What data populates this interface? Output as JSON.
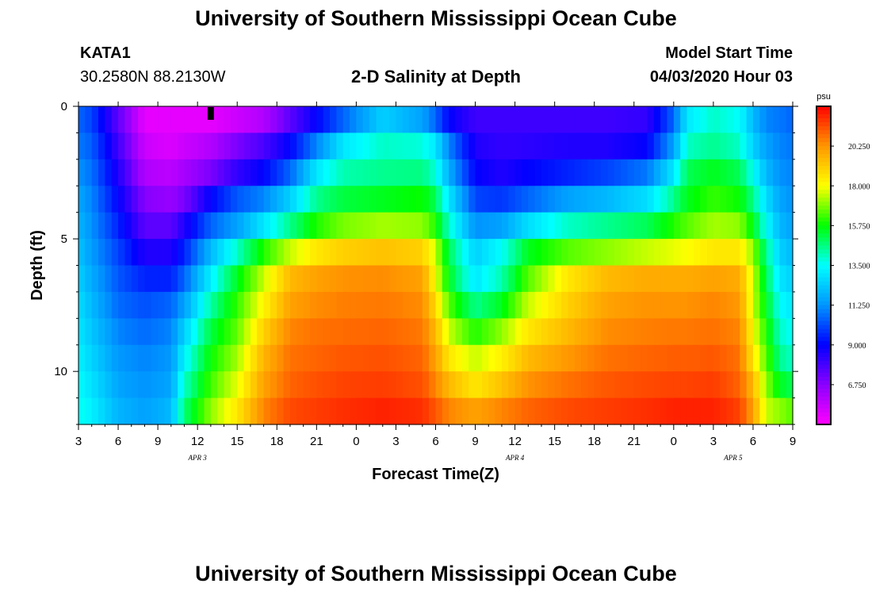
{
  "header": {
    "title": "University of Southern Mississippi Ocean Cube",
    "station_id": "KATA1",
    "coords": "30.2580N 88.2130W",
    "subtitle": "2-D Salinity at Depth",
    "start_label": "Model Start Time",
    "start_value": "04/03/2020 Hour 03"
  },
  "footer": {
    "title": "University of Southern Mississippi Ocean Cube"
  },
  "colors": {
    "scale": [
      "#ff00ff",
      "#8a00ff",
      "#0000ff",
      "#0096ff",
      "#00ffff",
      "#00ff00",
      "#ffff00",
      "#ff9600",
      "#ff0000"
    ],
    "marker": "#000000"
  },
  "chart_data": {
    "type": "heatmap",
    "title": "2-D Salinity at Depth",
    "xlabel": "Forecast Time(Z)",
    "ylabel": "Depth (ft)",
    "xlim": [
      3,
      57
    ],
    "ylim": [
      0,
      12
    ],
    "y_inverted": true,
    "x_tick_labels": [
      "3",
      "6",
      "9",
      "12",
      "15",
      "18",
      "21",
      "0",
      "3",
      "6",
      "9",
      "12",
      "15",
      "18",
      "21",
      "0",
      "3",
      "6",
      "9"
    ],
    "x_tick_hours": [
      3,
      6,
      9,
      12,
      15,
      18,
      21,
      24,
      27,
      30,
      33,
      36,
      39,
      42,
      45,
      48,
      51,
      54,
      57
    ],
    "date_labels": [
      {
        "text": "APR 3",
        "hour": 12
      },
      {
        "text": "APR 4",
        "hour": 36
      },
      {
        "text": "APR 5",
        "hour": 52.5
      }
    ],
    "y_tick_labels": [
      "0",
      "5",
      "10"
    ],
    "y_tick_values": [
      0,
      5,
      10
    ],
    "colorbar": {
      "unit": "psu",
      "min": 4.5,
      "max": 22.5,
      "ticks": [
        "20.250",
        "18.000",
        "15.750",
        "13.500",
        "11.250",
        "9.000",
        "6.750"
      ],
      "tick_values": [
        20.25,
        18.0,
        15.75,
        13.5,
        11.25,
        9.0,
        6.75
      ]
    },
    "depth_levels_ft": [
      0.5,
      1.5,
      2.5,
      3.5,
      4.5,
      5.5,
      6.5,
      7.5,
      8.5,
      9.5,
      10.5,
      11.5
    ],
    "profiles": [
      {
        "hour": 3,
        "values": [
          10.5,
          10.8,
          11.2,
          11.6,
          11.9,
          12.2,
          12.5,
          12.8,
          13.0,
          13.2,
          13.4,
          13.7
        ]
      },
      {
        "hour": 4,
        "values": [
          10.0,
          10.4,
          10.7,
          11.0,
          11.2,
          11.4,
          11.7,
          12.0,
          12.3,
          12.6,
          12.9,
          13.2
        ]
      },
      {
        "hour": 6,
        "values": [
          7.5,
          8.0,
          8.5,
          9.0,
          9.5,
          10.0,
          10.3,
          10.6,
          11.0,
          11.3,
          11.6,
          11.9
        ]
      },
      {
        "hour": 8,
        "values": [
          5.0,
          5.5,
          6.0,
          6.8,
          7.5,
          8.5,
          9.5,
          10.2,
          10.6,
          11.0,
          11.2,
          11.5
        ]
      },
      {
        "hour": 10,
        "values": [
          5.0,
          5.2,
          5.8,
          6.5,
          7.5,
          8.5,
          9.5,
          10.5,
          11.0,
          11.3,
          11.6,
          12.0
        ]
      },
      {
        "hour": 11,
        "values": [
          5.0,
          5.5,
          6.2,
          7.0,
          8.5,
          9.5,
          10.5,
          11.5,
          12.5,
          13.3,
          14.0,
          14.7
        ]
      },
      {
        "hour": 13,
        "values": [
          5.0,
          6.0,
          7.0,
          9.0,
          10.5,
          12.0,
          13.2,
          14.3,
          15.2,
          15.8,
          16.3,
          17.0
        ]
      },
      {
        "hour": 15,
        "values": [
          5.5,
          7.0,
          8.2,
          10.3,
          11.5,
          14.0,
          15.5,
          16.2,
          16.6,
          17.2,
          17.8,
          18.5
        ]
      },
      {
        "hour": 17,
        "values": [
          6.0,
          7.8,
          9.0,
          11.0,
          13.0,
          16.0,
          17.5,
          18.2,
          19.0,
          19.6,
          20.0,
          20.5
        ]
      },
      {
        "hour": 19,
        "values": [
          7.5,
          9.0,
          10.5,
          12.5,
          14.5,
          17.5,
          19.5,
          20.0,
          20.5,
          20.8,
          21.0,
          21.4
        ]
      },
      {
        "hour": 21,
        "values": [
          9.0,
          11.0,
          13.0,
          14.5,
          16.0,
          18.5,
          20.0,
          20.4,
          20.8,
          21.0,
          21.3,
          21.6
        ]
      },
      {
        "hour": 23,
        "values": [
          10.5,
          13.0,
          14.2,
          15.2,
          16.8,
          19.0,
          20.3,
          20.6,
          20.9,
          21.2,
          21.5,
          21.8
        ]
      },
      {
        "hour": 26,
        "values": [
          12.5,
          14.0,
          14.5,
          15.5,
          17.2,
          19.3,
          20.4,
          20.7,
          21.0,
          21.3,
          21.6,
          22.0
        ]
      },
      {
        "hour": 29,
        "values": [
          11.5,
          13.8,
          14.6,
          15.8,
          17.0,
          19.0,
          20.0,
          20.4,
          20.7,
          21.0,
          21.3,
          21.8
        ]
      },
      {
        "hour": 30,
        "values": [
          10.5,
          13.0,
          13.8,
          15.0,
          16.0,
          17.5,
          18.0,
          18.8,
          19.5,
          20.0,
          20.5,
          21.2
        ]
      },
      {
        "hour": 31,
        "values": [
          9.0,
          11.0,
          11.8,
          13.0,
          14.0,
          15.0,
          15.5,
          16.5,
          17.5,
          18.5,
          19.5,
          20.5
        ]
      },
      {
        "hour": 33,
        "values": [
          8.0,
          8.5,
          9.0,
          10.0,
          11.2,
          12.5,
          13.0,
          14.5,
          16.0,
          17.5,
          18.5,
          20.0
        ]
      },
      {
        "hour": 35,
        "values": [
          8.0,
          8.2,
          8.5,
          9.8,
          11.5,
          13.5,
          14.2,
          15.5,
          17.0,
          18.3,
          19.3,
          20.5
        ]
      },
      {
        "hour": 37,
        "values": [
          8.0,
          8.3,
          9.0,
          10.5,
          12.8,
          15.5,
          16.5,
          17.5,
          18.5,
          19.5,
          20.3,
          21.0
        ]
      },
      {
        "hour": 40,
        "values": [
          8.0,
          8.5,
          9.5,
          11.5,
          14.0,
          16.5,
          18.5,
          19.0,
          19.5,
          20.2,
          20.8,
          21.4
        ]
      },
      {
        "hour": 43,
        "values": [
          8.0,
          8.5,
          10.0,
          12.0,
          14.5,
          17.0,
          19.5,
          20.0,
          20.4,
          20.8,
          21.2,
          21.6
        ]
      },
      {
        "hour": 46,
        "values": [
          8.2,
          9.0,
          10.8,
          12.8,
          15.0,
          17.5,
          19.8,
          20.3,
          20.6,
          21.0,
          21.4,
          21.8
        ]
      },
      {
        "hour": 48,
        "values": [
          10.5,
          11.5,
          13.0,
          14.5,
          16.0,
          17.8,
          19.8,
          20.3,
          20.7,
          21.1,
          21.5,
          22.0
        ]
      },
      {
        "hour": 49,
        "values": [
          13.0,
          14.0,
          15.0,
          15.5,
          16.5,
          18.0,
          19.8,
          20.3,
          20.7,
          21.1,
          21.5,
          22.0
        ]
      },
      {
        "hour": 51,
        "values": [
          14.0,
          14.5,
          15.5,
          16.2,
          17.2,
          18.5,
          20.0,
          20.5,
          20.8,
          21.2,
          21.6,
          22.0
        ]
      },
      {
        "hour": 53,
        "values": [
          13.5,
          14.0,
          15.0,
          15.8,
          17.0,
          18.5,
          19.8,
          20.2,
          20.5,
          20.8,
          21.0,
          21.5
        ]
      },
      {
        "hour": 54,
        "values": [
          12.0,
          12.5,
          13.5,
          14.5,
          15.5,
          17.0,
          17.5,
          17.5,
          18.0,
          18.5,
          19.5,
          20.0
        ]
      },
      {
        "hour": 55,
        "values": [
          11.0,
          11.5,
          12.0,
          12.8,
          13.5,
          14.5,
          15.0,
          15.5,
          16.0,
          16.5,
          17.0,
          17.5
        ]
      },
      {
        "hour": 56,
        "values": [
          10.8,
          11.0,
          11.2,
          11.6,
          12.0,
          12.5,
          13.0,
          13.5,
          14.0,
          14.5,
          15.5,
          17.0
        ]
      },
      {
        "hour": 57,
        "values": [
          10.5,
          10.8,
          11.0,
          11.2,
          11.5,
          12.0,
          12.5,
          13.0,
          13.5,
          14.0,
          15.0,
          16.5
        ]
      }
    ],
    "marker": {
      "hour": 13,
      "depth_ft": 0.5
    }
  }
}
